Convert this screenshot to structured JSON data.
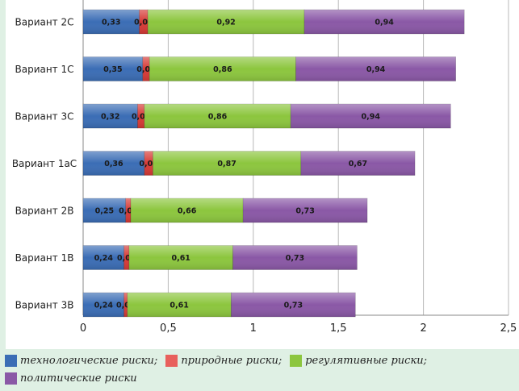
{
  "chart_data": {
    "type": "bar",
    "orientation": "horizontal",
    "stacked": true,
    "categories": [
      "Вариант 2С",
      "Вариант 1С",
      "Вариант 3С",
      "Вариант 1аС",
      "Вариант 2В",
      "Вариант 1В",
      "Вариант 3В"
    ],
    "series": [
      {
        "name": "технологические риски;",
        "color": "#3b6db5",
        "values": [
          0.33,
          0.35,
          0.32,
          0.36,
          0.25,
          0.24,
          0.24
        ],
        "labels": [
          "0,33",
          "0,35",
          "0,32",
          "0,36",
          "0,25",
          "0,24",
          "0,24"
        ]
      },
      {
        "name": "природные риски;",
        "color": "#d63a36",
        "values": [
          0.05,
          0.04,
          0.04,
          0.05,
          0.03,
          0.03,
          0.02
        ],
        "labels": [
          "0,05",
          "0,04",
          "0,04",
          "0,05",
          "0,03",
          "0,03",
          "0,02"
        ]
      },
      {
        "name": "регулятивные риски;",
        "color": "#8cc63e",
        "values": [
          0.92,
          0.86,
          0.86,
          0.87,
          0.66,
          0.61,
          0.61
        ],
        "labels": [
          "0,92",
          "0,86",
          "0,86",
          "0,87",
          "0,66",
          "0,61",
          "0,61"
        ]
      },
      {
        "name": "политические риски",
        "color": "#8a58a6",
        "values": [
          0.94,
          0.94,
          0.94,
          0.67,
          0.73,
          0.73,
          0.73
        ],
        "labels": [
          "0,94",
          "0,94",
          "0,94",
          "0,67",
          "0,73",
          "0,73",
          "0,73"
        ]
      }
    ],
    "xlim": [
      0,
      2.5
    ],
    "xticks": [
      0,
      0.5,
      1,
      1.5,
      2,
      2.5
    ],
    "xtick_labels": [
      "0",
      "0,5",
      "1",
      "1,5",
      "2",
      "2,5"
    ],
    "grid": "vertical",
    "legend_position": "bottom"
  }
}
